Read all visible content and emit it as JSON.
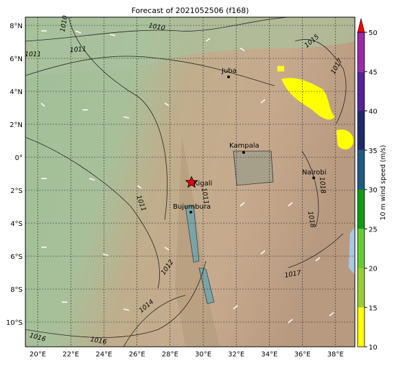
{
  "title": "Forecast of 2021052506 (f168)",
  "lon_ticks": [
    "20°E",
    "22°E",
    "24°E",
    "26°E",
    "28°E",
    "30°E",
    "32°E",
    "34°E",
    "36°E",
    "38°E"
  ],
  "lat_ticks": [
    "8°N",
    "6°N",
    "4°N",
    "2°N",
    "0°",
    "2°S",
    "4°S",
    "6°S",
    "8°S",
    "10°S"
  ],
  "cities": [
    "Juba",
    "Kampala",
    "Kigali",
    "Nairobi",
    "Bujumbura"
  ],
  "isobar_labels": [
    "1010",
    "1011",
    "1011",
    "1011",
    "1012",
    "1014",
    "1016",
    "1016",
    "1017",
    "1018",
    "1018",
    "1015",
    "1017",
    "1011",
    "1010"
  ],
  "colorbar": {
    "label": "10 m wind speed (m/s)",
    "ticks": [
      10,
      15,
      20,
      25,
      30,
      35,
      40,
      45,
      50
    ],
    "colors": [
      "#ffff00",
      "#9acd32",
      "#66cc33",
      "#129a12",
      "#1f5a86",
      "#1f2a6b",
      "#55229a",
      "#9a2aa8"
    ],
    "extend_color": "#ff0000"
  }
}
